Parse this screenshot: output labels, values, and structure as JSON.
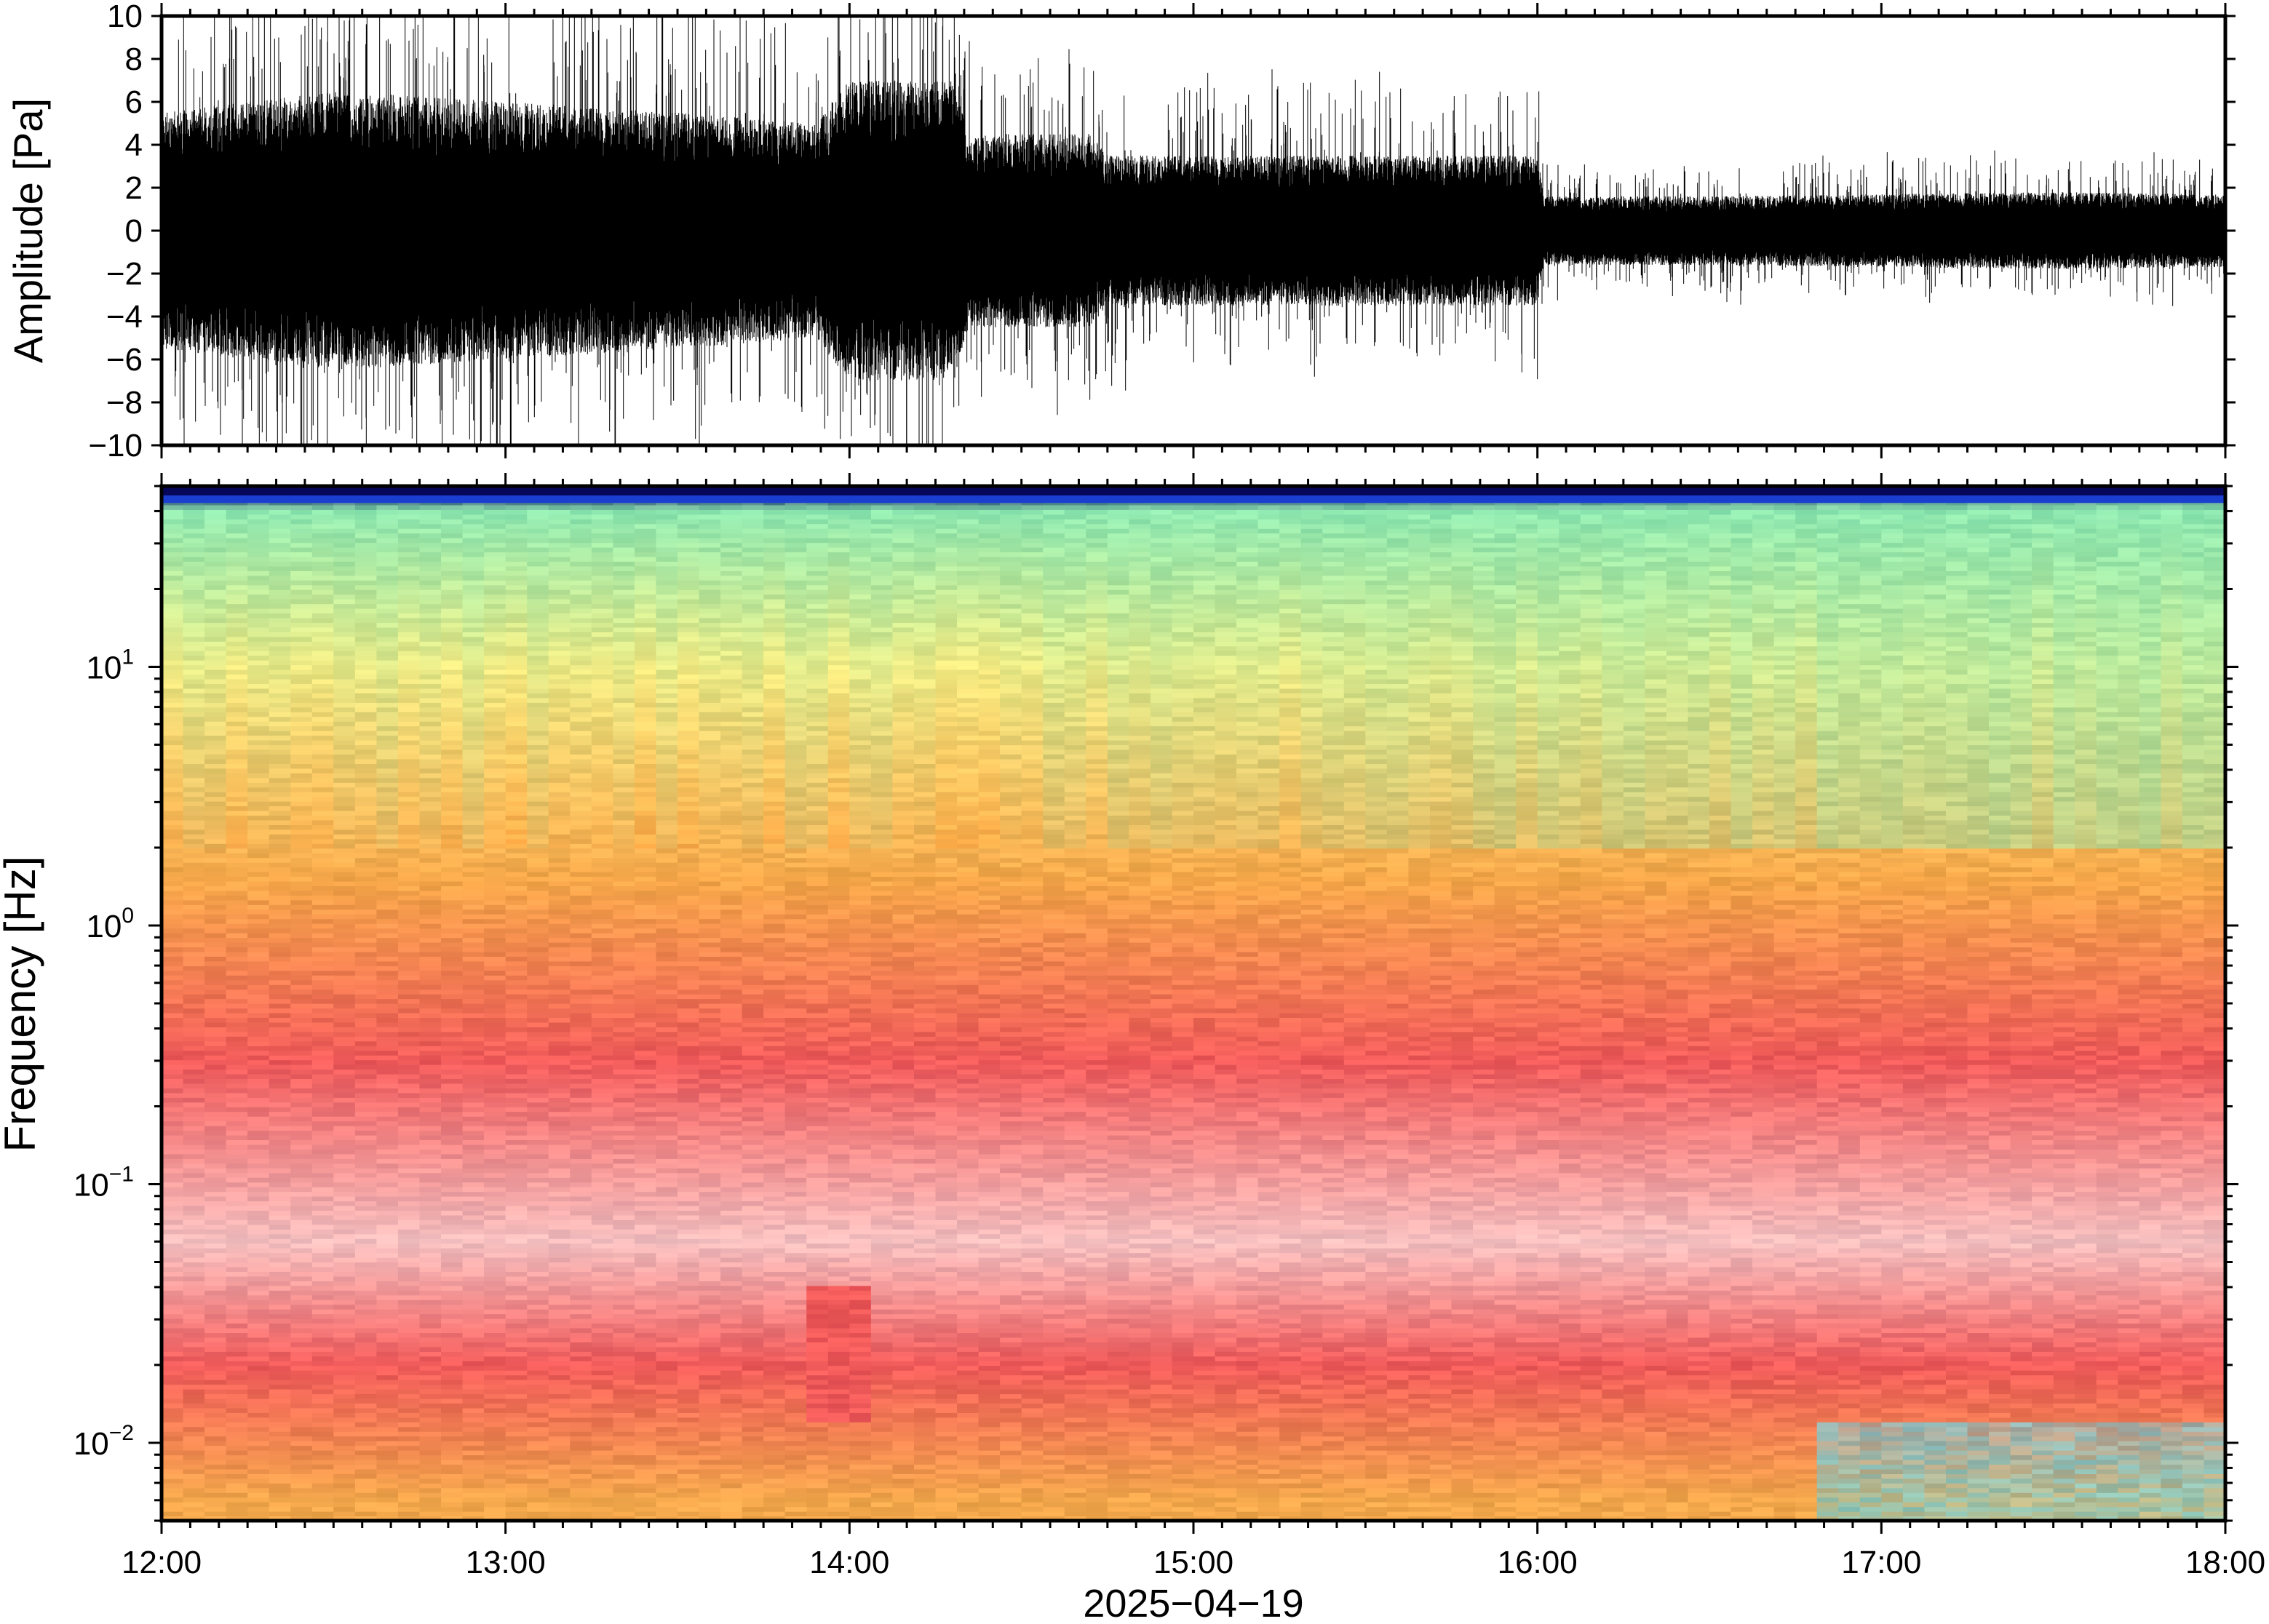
{
  "chart_data": [
    {
      "type": "line",
      "panel": "waveform",
      "ylabel": "Amplitude [Pa]",
      "ylim": [
        -10,
        10
      ],
      "yticks": [
        10,
        8,
        6,
        4,
        2,
        0,
        -2,
        -4,
        -6,
        -8,
        -10
      ],
      "ytick_labels": [
        "10",
        "8",
        "6",
        "4",
        "2",
        "0",
        "−2",
        "−4",
        "−6",
        "−8",
        "−10"
      ],
      "xlim_hours": [
        12,
        18
      ],
      "envelope_hours": [
        12.0,
        12.5,
        13.0,
        13.5,
        13.9,
        14.0,
        14.3,
        14.35,
        14.7,
        14.75,
        15.0,
        15.5,
        16.0,
        16.02,
        16.5,
        17.0,
        17.5,
        18.0
      ],
      "envelope_pa": [
        5.5,
        6.5,
        6.0,
        5.5,
        5.0,
        7.0,
        7.0,
        4.5,
        4.5,
        3.5,
        3.5,
        3.5,
        3.5,
        1.6,
        1.6,
        1.7,
        1.8,
        1.7
      ],
      "color": "#000000",
      "grid": false,
      "legend": "none"
    },
    {
      "type": "heatmap",
      "panel": "spectrogram",
      "ylabel": "Frequency [Hz]",
      "yscale": "log",
      "ylim": [
        0.005,
        50
      ],
      "yticks": [
        0.01,
        0.1,
        1,
        10
      ],
      "ytick_labels": [
        {
          "base": "10",
          "exp": "−2"
        },
        {
          "base": "10",
          "exp": "−1"
        },
        {
          "base": "10",
          "exp": "0"
        },
        {
          "base": "10",
          "exp": "1"
        }
      ],
      "xlabel": "2025−04−19",
      "xlim_hours": [
        12,
        18
      ],
      "xticks_hours": [
        12,
        13,
        14,
        15,
        16,
        17,
        18
      ],
      "xtick_labels": [
        "12:00",
        "13:00",
        "14:00",
        "15:00",
        "16:00",
        "17:00",
        "18:00"
      ],
      "colormap": [
        "#f4cccc",
        "#f05a5a",
        "#f7a84a",
        "#eef08a",
        "#8ee8b0",
        "#62d6ea",
        "#1a3fd0",
        "#06065a"
      ],
      "band_colors_by_frequency": [
        {
          "hz": 0.006,
          "color": "#f4a84c"
        },
        {
          "hz": 0.02,
          "color": "#f05a5a"
        },
        {
          "hz": 0.06,
          "color": "#f6c0c0"
        },
        {
          "hz": 0.3,
          "color": "#f05a5a"
        },
        {
          "hz": 1.5,
          "color": "#f7a84a"
        },
        {
          "hz": 10,
          "color": "#eaea86"
        },
        {
          "hz": 40,
          "color": "#8ee8b0"
        },
        {
          "hz": 48,
          "color": "#06065a"
        }
      ],
      "grid": false,
      "legend": "none"
    }
  ]
}
